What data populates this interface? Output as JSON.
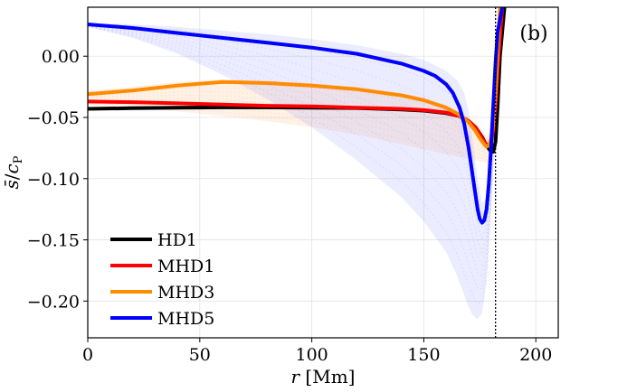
{
  "chart_data": {
    "type": "line",
    "panel_label": "(b)",
    "xlabel_var": "r",
    "xlabel_unit": "[Mm]",
    "ylabel_num": "s̄",
    "ylabel_den": "c",
    "ylabel_sub": "P",
    "xlim": [
      0,
      210
    ],
    "ylim": [
      -0.23,
      0.04
    ],
    "xticks": [
      0,
      50,
      100,
      150,
      200
    ],
    "xtick_labels": [
      "0",
      "50",
      "100",
      "150",
      "200"
    ],
    "yticks": [
      0.0,
      -0.05,
      -0.1,
      -0.15,
      -0.2
    ],
    "ytick_labels": [
      "0.00",
      "−0.05",
      "−0.10",
      "−0.15",
      "−0.20"
    ],
    "grid": true,
    "legend_position": "lower-left",
    "vertical_line_x": 182,
    "series": [
      {
        "name": "HD1",
        "color": "#000000",
        "x": [
          0,
          20,
          40,
          60,
          80,
          100,
          120,
          140,
          150,
          160,
          166,
          170,
          173,
          176,
          178,
          180,
          181,
          182,
          183,
          184,
          186
        ],
        "values": [
          -0.043,
          -0.0425,
          -0.042,
          -0.0418,
          -0.0418,
          -0.042,
          -0.0423,
          -0.0435,
          -0.0445,
          -0.0465,
          -0.049,
          -0.053,
          -0.058,
          -0.066,
          -0.073,
          -0.078,
          -0.078,
          -0.07,
          -0.04,
          0.0,
          0.04
        ]
      },
      {
        "name": "MHD1",
        "color": "#ff0000",
        "x": [
          0,
          20,
          40,
          60,
          80,
          100,
          120,
          140,
          150,
          160,
          166,
          170,
          173,
          175,
          177,
          178,
          179,
          180,
          181,
          182,
          183,
          185
        ],
        "values": [
          -0.037,
          -0.0375,
          -0.0385,
          -0.0395,
          -0.0405,
          -0.041,
          -0.042,
          -0.043,
          -0.044,
          -0.046,
          -0.049,
          -0.053,
          -0.058,
          -0.064,
          -0.07,
          -0.072,
          -0.073,
          -0.07,
          -0.06,
          -0.04,
          -0.01,
          0.04
        ]
      },
      {
        "name": "MHD3",
        "color": "#ff8c00",
        "x": [
          0,
          20,
          40,
          60,
          80,
          100,
          120,
          140,
          150,
          160,
          165,
          170,
          173,
          175,
          177,
          178,
          179,
          180,
          181,
          182,
          184
        ],
        "values": [
          -0.031,
          -0.028,
          -0.024,
          -0.021,
          -0.022,
          -0.024,
          -0.027,
          -0.032,
          -0.036,
          -0.042,
          -0.047,
          -0.054,
          -0.061,
          -0.067,
          -0.072,
          -0.074,
          -0.073,
          -0.068,
          -0.055,
          -0.03,
          0.04
        ]
      },
      {
        "name": "MHD5",
        "color": "#0000ff",
        "x": [
          0,
          20,
          40,
          60,
          80,
          100,
          120,
          140,
          150,
          155,
          160,
          163,
          166,
          168,
          170,
          172,
          174,
          175,
          176,
          177,
          178,
          179,
          180,
          181,
          182,
          183,
          185
        ],
        "values": [
          0.026,
          0.023,
          0.019,
          0.015,
          0.011,
          0.007,
          0.002,
          -0.006,
          -0.012,
          -0.016,
          -0.023,
          -0.03,
          -0.042,
          -0.055,
          -0.075,
          -0.1,
          -0.125,
          -0.133,
          -0.136,
          -0.134,
          -0.125,
          -0.105,
          -0.075,
          -0.04,
          -0.005,
          0.02,
          0.04
        ]
      }
    ],
    "envelopes": [
      {
        "series": "MHD3",
        "color": "#ffab66",
        "x": [
          0,
          20,
          40,
          60,
          80,
          100,
          120,
          140,
          150,
          160,
          165,
          170,
          175,
          178,
          180,
          182
        ],
        "upper": [
          -0.028,
          -0.025,
          -0.021,
          -0.019,
          -0.02,
          -0.022,
          -0.025,
          -0.03,
          -0.034,
          -0.04,
          -0.045,
          -0.05,
          -0.058,
          -0.065,
          -0.06,
          -0.03
        ],
        "lower": [
          -0.04,
          -0.042,
          -0.045,
          -0.049,
          -0.053,
          -0.058,
          -0.064,
          -0.072,
          -0.076,
          -0.08,
          -0.082,
          -0.084,
          -0.086,
          -0.087,
          -0.085,
          -0.07
        ]
      },
      {
        "series": "MHD5",
        "color": "#8888ff",
        "x": [
          0,
          20,
          40,
          60,
          80,
          100,
          120,
          140,
          150,
          160,
          165,
          168,
          170,
          172,
          174,
          176,
          178,
          180,
          182,
          184
        ],
        "upper": [
          0.027,
          0.026,
          0.024,
          0.021,
          0.018,
          0.014,
          0.009,
          0.002,
          -0.003,
          -0.012,
          -0.02,
          -0.03,
          -0.045,
          -0.07,
          -0.1,
          -0.12,
          -0.115,
          -0.08,
          -0.02,
          0.04
        ],
        "lower": [
          0.024,
          0.015,
          0.002,
          -0.015,
          -0.035,
          -0.058,
          -0.085,
          -0.115,
          -0.135,
          -0.16,
          -0.18,
          -0.195,
          -0.205,
          -0.212,
          -0.215,
          -0.21,
          -0.185,
          -0.13,
          -0.05,
          0.02
        ]
      }
    ]
  }
}
